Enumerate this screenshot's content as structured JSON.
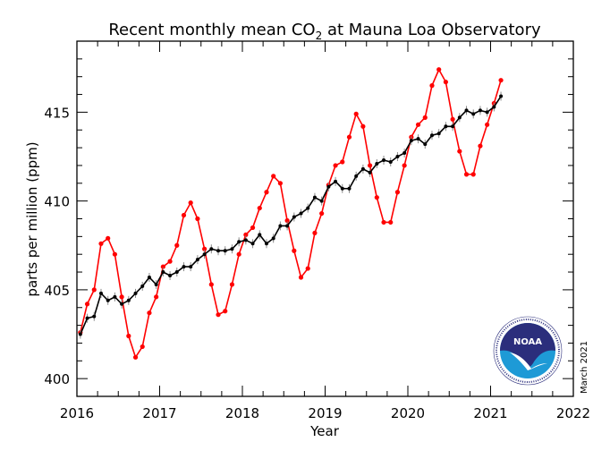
{
  "chart_data": {
    "type": "line",
    "title": "Recent monthly mean CO",
    "title_subscript": "2",
    "title_suffix": " at Mauna Loa Observatory",
    "xlabel": "Year",
    "ylabel": "parts per million (ppm)",
    "xlim": [
      2016,
      2022
    ],
    "ylim": [
      399,
      419
    ],
    "x_ticks": [
      "2016",
      "2017",
      "2018",
      "2019",
      "2020",
      "2021",
      "2022"
    ],
    "y_ticks": [
      "400",
      "405",
      "410",
      "415"
    ],
    "grid": false,
    "x_start": "2016-01",
    "series": [
      {
        "color": "#ff0000",
        "values": [
          402.6,
          404.2,
          405.0,
          407.6,
          407.9,
          407.0,
          404.6,
          402.4,
          401.2,
          401.8,
          403.7,
          404.6,
          406.3,
          406.6,
          407.5,
          409.2,
          409.9,
          409.0,
          407.3,
          405.3,
          403.6,
          403.8,
          405.3,
          407.0,
          408.1,
          408.5,
          409.6,
          410.5,
          411.4,
          411.0,
          408.9,
          407.2,
          405.7,
          406.2,
          408.2,
          409.3,
          410.9,
          412.0,
          412.2,
          413.6,
          414.9,
          414.2,
          412.0,
          410.2,
          408.8,
          408.8,
          410.5,
          412.0,
          413.6,
          414.3,
          414.7,
          416.5,
          417.4,
          416.7,
          414.6,
          412.8,
          411.5,
          411.5,
          413.1,
          414.3,
          415.5,
          416.8
        ]
      },
      {
        "color": "#000000",
        "values": [
          402.5,
          403.4,
          403.5,
          404.8,
          404.4,
          404.6,
          404.2,
          404.4,
          404.8,
          405.2,
          405.7,
          405.3,
          406.0,
          405.8,
          406.0,
          406.3,
          406.3,
          406.7,
          407.0,
          407.3,
          407.2,
          407.2,
          407.3,
          407.7,
          407.8,
          407.6,
          408.1,
          407.6,
          407.9,
          408.6,
          408.6,
          409.1,
          409.3,
          409.6,
          410.2,
          410.0,
          410.8,
          411.1,
          410.7,
          410.7,
          411.4,
          411.8,
          411.6,
          412.1,
          412.3,
          412.2,
          412.5,
          412.7,
          413.4,
          413.5,
          413.2,
          413.7,
          413.8,
          414.2,
          414.2,
          414.7,
          415.1,
          414.9,
          415.1,
          415.0,
          415.3,
          415.9
        ]
      }
    ]
  },
  "logo": {
    "text": "NOAA",
    "ring_text": "NATIONAL OCEANIC AND ATMOSPHERIC ADMINISTRATION · U.S. DEPARTMENT OF COMMERCE"
  },
  "date_stamp": "March 2021",
  "colors": {
    "seasonal": "#ff0000",
    "trend": "#000000",
    "logo_navy": "#2b2e7c",
    "logo_blue": "#1e9ad6"
  }
}
